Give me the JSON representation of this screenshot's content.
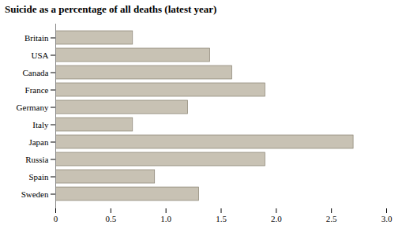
{
  "chart_data": {
    "type": "bar",
    "orientation": "horizontal",
    "title": "Suicide as a percentage of all deaths (latest year)",
    "categories": [
      "Britain",
      "USA",
      "Canada",
      "France",
      "Germany",
      "Italy",
      "Japan",
      "Russia",
      "Spain",
      "Sweden"
    ],
    "values": [
      0.7,
      1.4,
      1.6,
      1.9,
      1.2,
      0.7,
      2.7,
      1.9,
      0.9,
      1.3
    ],
    "color": "#c8c2b4",
    "xlim": [
      0,
      3.0
    ],
    "xticks": [
      0,
      0.5,
      {
        "value": 1.0,
        "label": "1.0"
      },
      1.5,
      {
        "value": 2.0,
        "label": "2.0"
      },
      2.5,
      {
        "value": 3.0,
        "label": "3.0"
      }
    ],
    "grid": false
  }
}
